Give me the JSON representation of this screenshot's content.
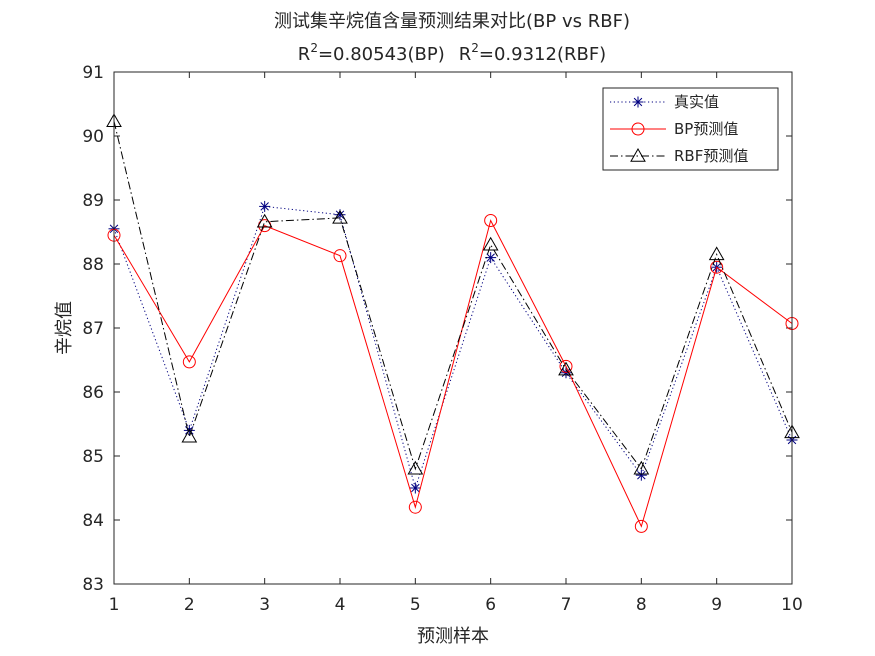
{
  "chart_data": {
    "type": "line",
    "title_line1": "测试集辛烷值含量预测结果对比(BP vs RBF)",
    "title_line2": {
      "bp_prefix": "R",
      "bp_sup": "2",
      "bp_value": "=0.80543(BP)",
      "rbf_prefix": "R",
      "rbf_sup": "2",
      "rbf_value": "=0.9312(RBF)"
    },
    "xlabel": "预测样本",
    "ylabel": "辛烷值",
    "x": [
      1,
      2,
      3,
      4,
      5,
      6,
      7,
      8,
      9,
      10
    ],
    "xlim": [
      1,
      10
    ],
    "ylim": [
      83,
      91
    ],
    "xticks": [
      1,
      2,
      3,
      4,
      5,
      6,
      7,
      8,
      9,
      10
    ],
    "yticks": [
      83,
      84,
      85,
      86,
      87,
      88,
      89,
      90,
      91
    ],
    "grid": false,
    "legend_position": "top-right",
    "series": [
      {
        "name": "真实值",
        "values": [
          88.55,
          85.4,
          88.9,
          88.77,
          84.5,
          88.1,
          86.3,
          84.7,
          87.95,
          85.25
        ],
        "color": "#000080",
        "marker": "asterisk",
        "line": "dotted"
      },
      {
        "name": "BP预测值",
        "values": [
          88.45,
          86.47,
          88.6,
          88.13,
          84.2,
          88.68,
          86.4,
          83.9,
          87.95,
          87.07
        ],
        "color": "#ff0000",
        "marker": "circle",
        "line": "solid"
      },
      {
        "name": "RBF预测值",
        "values": [
          90.23,
          85.3,
          88.66,
          88.72,
          84.8,
          88.3,
          86.35,
          84.8,
          88.15,
          85.37
        ],
        "color": "#000000",
        "marker": "triangle",
        "line": "dashdot"
      }
    ]
  }
}
